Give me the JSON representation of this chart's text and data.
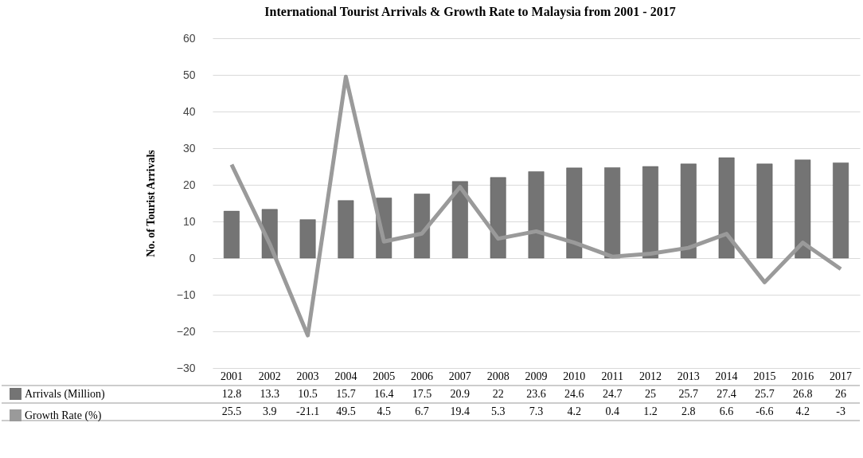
{
  "chart_data": {
    "type": "bar",
    "title": "International Tourist Arrivals & Growth Rate to Malaysia from 2001 - 2017",
    "ylabel": "No. of Tourist Arrivals",
    "categories": [
      "2001",
      "2002",
      "2003",
      "2004",
      "2005",
      "2006",
      "2007",
      "2008",
      "2009",
      "2010",
      "2011",
      "2012",
      "2013",
      "2014",
      "2015",
      "2016",
      "2017"
    ],
    "series": [
      {
        "name": "Arrivals (Million)",
        "color": "#747474",
        "values": [
          12.8,
          13.3,
          10.5,
          15.7,
          16.4,
          17.5,
          20.9,
          22,
          23.6,
          24.6,
          24.7,
          25,
          25.7,
          27.4,
          25.7,
          26.8,
          26
        ]
      },
      {
        "name": "Growth Rate (%)",
        "type": "line",
        "color": "#9a9a9a",
        "values": [
          25.5,
          3.9,
          -21.1,
          49.5,
          4.5,
          6.7,
          19.4,
          5.3,
          7.3,
          4.2,
          0.4,
          1.2,
          2.8,
          6.6,
          -6.6,
          4.2,
          -3
        ]
      }
    ],
    "ylim": [
      -30,
      60
    ],
    "yticks": [
      -30,
      -20,
      -10,
      0,
      10,
      20,
      30,
      40,
      50,
      60
    ],
    "grid": "y",
    "legend": "bottom left",
    "data_labels": true
  }
}
